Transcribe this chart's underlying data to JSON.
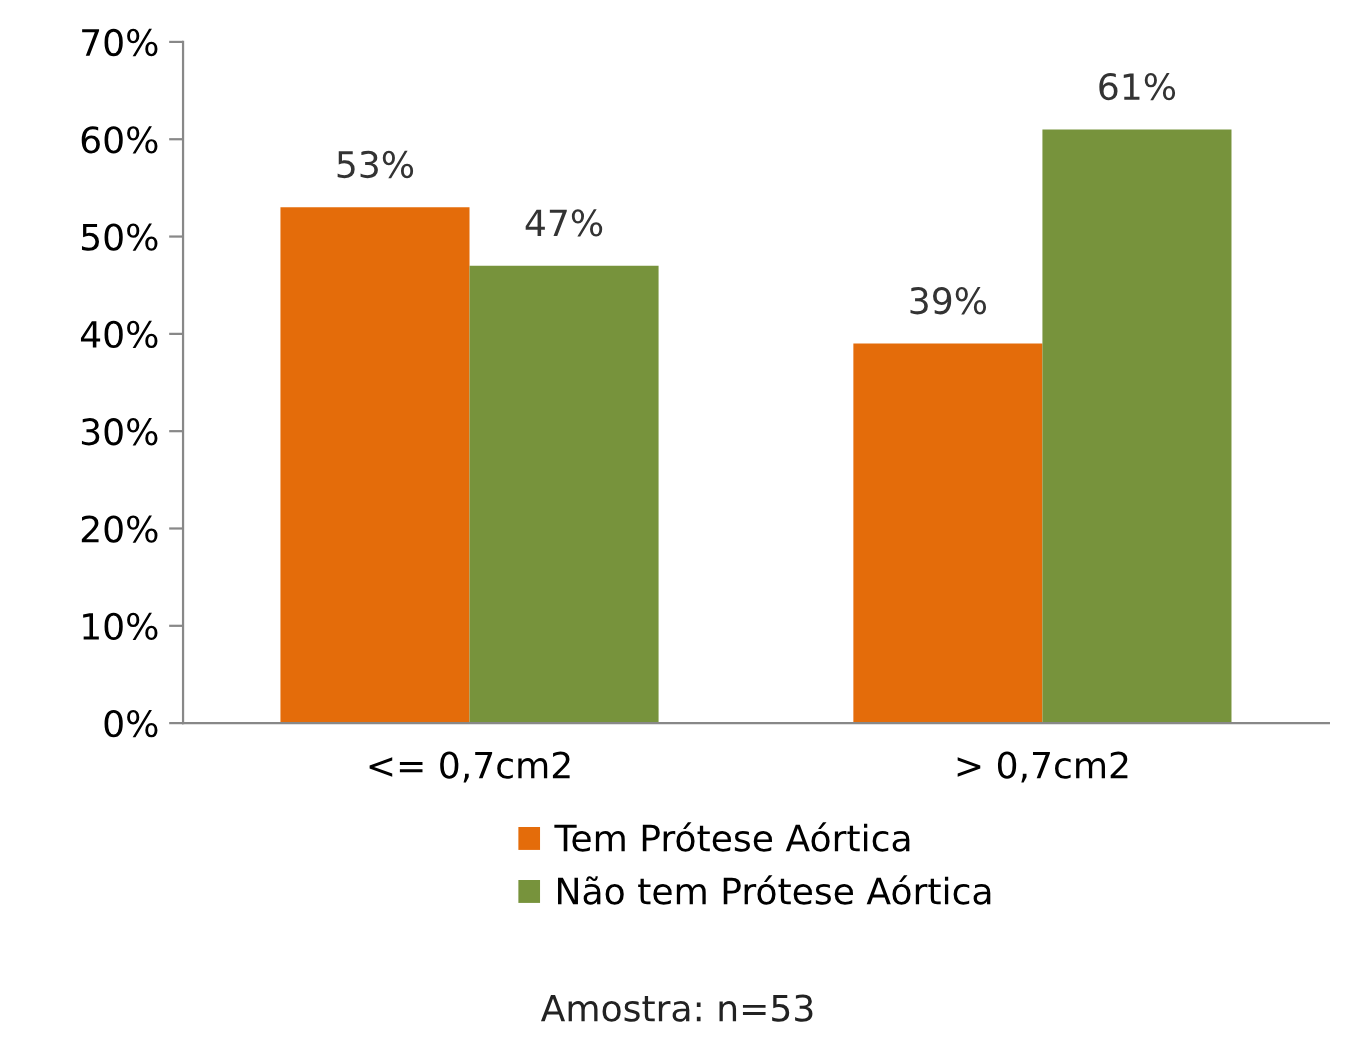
{
  "chart_data": {
    "type": "bar",
    "categories": [
      "<= 0,7cm2",
      "> 0,7cm2"
    ],
    "series": [
      {
        "name": "Tem Prótese Aórtica",
        "color": "#e46c0a",
        "values": [
          53,
          39
        ],
        "value_labels": [
          "53%",
          "39%"
        ]
      },
      {
        "name": "Não tem Prótese Aórtica",
        "color": "#77933c",
        "values": [
          47,
          61
        ],
        "value_labels": [
          "47%",
          "61%"
        ]
      }
    ],
    "ylim": [
      0,
      70
    ],
    "yticks": [
      {
        "value": 0,
        "label": "0%"
      },
      {
        "value": 10,
        "label": "10%"
      },
      {
        "value": 20,
        "label": "20%"
      },
      {
        "value": 30,
        "label": "30%"
      },
      {
        "value": 40,
        "label": "40%"
      },
      {
        "value": 50,
        "label": "50%"
      },
      {
        "value": 60,
        "label": "60%"
      },
      {
        "value": 70,
        "label": "70%"
      }
    ],
    "grid": false,
    "legend": "bottom",
    "annotations": [
      "Amostra: n=53"
    ]
  }
}
